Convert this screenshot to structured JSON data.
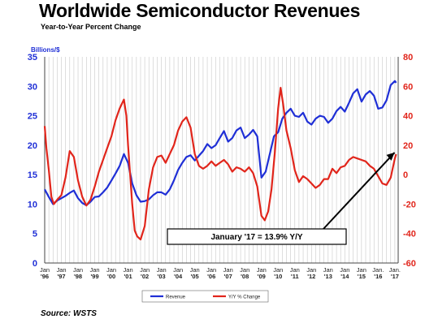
{
  "title": "Worldwide Semiconductor Revenues",
  "subtitle": "Year-to-Year Percent Change",
  "source": "Source: WSTS",
  "chart_data": {
    "type": "line",
    "y_left_label": "Billions/$",
    "y_left_ticks": [
      "0",
      "5",
      "10",
      "15",
      "20",
      "25",
      "30",
      "35"
    ],
    "y_left_lim": [
      0,
      35
    ],
    "y_right_ticks": [
      "80",
      "60",
      "40",
      "20",
      "0",
      "-20",
      "-40",
      "-60"
    ],
    "y_right_lim": [
      -60,
      80
    ],
    "x_ticks": [
      {
        "top": "Jan",
        "bottom": "'96"
      },
      {
        "top": "Jan",
        "bottom": "'97"
      },
      {
        "top": "Jan",
        "bottom": "'98"
      },
      {
        "top": "Jan",
        "bottom": "'99"
      },
      {
        "top": "Jan",
        "bottom": "'00"
      },
      {
        "top": "Jan",
        "bottom": "'01"
      },
      {
        "top": "Jan",
        "bottom": "'02"
      },
      {
        "top": "Jan",
        "bottom": "'03"
      },
      {
        "top": "Jan",
        "bottom": "'04"
      },
      {
        "top": "Jan",
        "bottom": "'05"
      },
      {
        "top": "Jan",
        "bottom": "'06"
      },
      {
        "top": "Jan",
        "bottom": "'07"
      },
      {
        "top": "Jan",
        "bottom": "'08"
      },
      {
        "top": "Jan",
        "bottom": "'09"
      },
      {
        "top": "Jan",
        "bottom": "'10"
      },
      {
        "top": "Jan",
        "bottom": "'11"
      },
      {
        "top": "Jan",
        "bottom": "'12"
      },
      {
        "top": "Jan",
        "bottom": "'13"
      },
      {
        "top": "Jan",
        "bottom": "'14"
      },
      {
        "top": "Jan",
        "bottom": "'15"
      },
      {
        "top": "Jan.",
        "bottom": "'16"
      },
      {
        "top": "Jan.",
        "bottom": "'17"
      }
    ],
    "x_lim": [
      1996.0,
      2017.2
    ],
    "grid": "vertical",
    "legend_position": "bottom-center",
    "annotation": {
      "text": "January '17 = 13.9% Y/Y",
      "x": 2017.08,
      "y_pct": 13.9
    },
    "series": [
      {
        "name": "Revenue",
        "axis": "left",
        "color": "#1f2fd6",
        "points": [
          [
            1996.0,
            12.5
          ],
          [
            1996.25,
            11.2
          ],
          [
            1996.5,
            10.0
          ],
          [
            1996.75,
            10.6
          ],
          [
            1997.0,
            11.0
          ],
          [
            1997.25,
            11.4
          ],
          [
            1997.5,
            11.9
          ],
          [
            1997.75,
            12.3
          ],
          [
            1998.0,
            11.0
          ],
          [
            1998.25,
            10.2
          ],
          [
            1998.5,
            9.8
          ],
          [
            1998.75,
            10.4
          ],
          [
            1999.0,
            11.2
          ],
          [
            1999.25,
            11.3
          ],
          [
            1999.5,
            12.0
          ],
          [
            1999.75,
            12.8
          ],
          [
            2000.0,
            14.0
          ],
          [
            2000.25,
            15.2
          ],
          [
            2000.5,
            16.5
          ],
          [
            2000.75,
            18.5
          ],
          [
            2001.0,
            17.0
          ],
          [
            2001.25,
            13.5
          ],
          [
            2001.5,
            11.5
          ],
          [
            2001.75,
            10.4
          ],
          [
            2002.0,
            10.5
          ],
          [
            2002.25,
            10.8
          ],
          [
            2002.5,
            11.5
          ],
          [
            2002.75,
            12.0
          ],
          [
            2003.0,
            12.0
          ],
          [
            2003.25,
            11.6
          ],
          [
            2003.5,
            12.5
          ],
          [
            2003.75,
            14.0
          ],
          [
            2004.0,
            15.8
          ],
          [
            2004.25,
            17.0
          ],
          [
            2004.5,
            18.0
          ],
          [
            2004.75,
            18.3
          ],
          [
            2005.0,
            17.4
          ],
          [
            2005.25,
            18.2
          ],
          [
            2005.5,
            19.0
          ],
          [
            2005.75,
            20.2
          ],
          [
            2006.0,
            19.5
          ],
          [
            2006.25,
            20.0
          ],
          [
            2006.5,
            21.2
          ],
          [
            2006.75,
            22.4
          ],
          [
            2007.0,
            20.6
          ],
          [
            2007.25,
            21.2
          ],
          [
            2007.5,
            22.5
          ],
          [
            2007.75,
            23.0
          ],
          [
            2008.0,
            21.2
          ],
          [
            2008.25,
            21.8
          ],
          [
            2008.5,
            22.6
          ],
          [
            2008.75,
            21.5
          ],
          [
            2009.0,
            14.5
          ],
          [
            2009.25,
            15.5
          ],
          [
            2009.5,
            18.5
          ],
          [
            2009.75,
            21.5
          ],
          [
            2010.0,
            22.2
          ],
          [
            2010.25,
            24.5
          ],
          [
            2010.5,
            25.5
          ],
          [
            2010.75,
            26.2
          ],
          [
            2011.0,
            25.0
          ],
          [
            2011.25,
            24.8
          ],
          [
            2011.5,
            25.5
          ],
          [
            2011.75,
            24.0
          ],
          [
            2012.0,
            23.5
          ],
          [
            2012.25,
            24.5
          ],
          [
            2012.5,
            25.0
          ],
          [
            2012.75,
            24.8
          ],
          [
            2013.0,
            23.8
          ],
          [
            2013.25,
            24.5
          ],
          [
            2013.5,
            25.8
          ],
          [
            2013.75,
            26.5
          ],
          [
            2014.0,
            25.7
          ],
          [
            2014.25,
            27.2
          ],
          [
            2014.5,
            28.8
          ],
          [
            2014.75,
            29.5
          ],
          [
            2015.0,
            27.4
          ],
          [
            2015.25,
            28.6
          ],
          [
            2015.5,
            29.2
          ],
          [
            2015.75,
            28.4
          ],
          [
            2016.0,
            26.2
          ],
          [
            2016.25,
            26.4
          ],
          [
            2016.5,
            27.6
          ],
          [
            2016.75,
            30.2
          ],
          [
            2017.0,
            30.9
          ],
          [
            2017.08,
            30.6
          ]
        ]
      },
      {
        "name": "Y/Y % Change",
        "axis": "right",
        "color": "#e1251b",
        "points": [
          [
            1996.0,
            33
          ],
          [
            1996.1,
            18
          ],
          [
            1996.25,
            3
          ],
          [
            1996.4,
            -15
          ],
          [
            1996.55,
            -20
          ],
          [
            1996.75,
            -17
          ],
          [
            1997.0,
            -14
          ],
          [
            1997.25,
            -2
          ],
          [
            1997.5,
            16
          ],
          [
            1997.75,
            12
          ],
          [
            1998.0,
            -4
          ],
          [
            1998.25,
            -15
          ],
          [
            1998.5,
            -21
          ],
          [
            1998.75,
            -17
          ],
          [
            1999.0,
            -8
          ],
          [
            1999.25,
            2
          ],
          [
            1999.5,
            10
          ],
          [
            1999.75,
            18
          ],
          [
            2000.0,
            26
          ],
          [
            2000.25,
            37
          ],
          [
            2000.5,
            45
          ],
          [
            2000.75,
            51
          ],
          [
            2000.9,
            40
          ],
          [
            2001.0,
            20
          ],
          [
            2001.25,
            -20
          ],
          [
            2001.4,
            -38
          ],
          [
            2001.55,
            -42
          ],
          [
            2001.75,
            -44
          ],
          [
            2002.0,
            -35
          ],
          [
            2002.25,
            -10
          ],
          [
            2002.5,
            5
          ],
          [
            2002.75,
            12
          ],
          [
            2003.0,
            13
          ],
          [
            2003.25,
            8
          ],
          [
            2003.5,
            14
          ],
          [
            2003.75,
            20
          ],
          [
            2004.0,
            30
          ],
          [
            2004.25,
            36
          ],
          [
            2004.5,
            39
          ],
          [
            2004.75,
            32
          ],
          [
            2005.0,
            14
          ],
          [
            2005.25,
            6
          ],
          [
            2005.5,
            4
          ],
          [
            2005.75,
            6
          ],
          [
            2006.0,
            9
          ],
          [
            2006.25,
            6
          ],
          [
            2006.5,
            8
          ],
          [
            2006.75,
            10
          ],
          [
            2007.0,
            7
          ],
          [
            2007.25,
            2
          ],
          [
            2007.5,
            5
          ],
          [
            2007.75,
            4
          ],
          [
            2008.0,
            2
          ],
          [
            2008.25,
            5
          ],
          [
            2008.5,
            1
          ],
          [
            2008.75,
            -8
          ],
          [
            2009.0,
            -28
          ],
          [
            2009.2,
            -31
          ],
          [
            2009.4,
            -25
          ],
          [
            2009.6,
            -10
          ],
          [
            2009.8,
            15
          ],
          [
            2010.0,
            45
          ],
          [
            2010.15,
            59
          ],
          [
            2010.3,
            48
          ],
          [
            2010.5,
            30
          ],
          [
            2010.75,
            18
          ],
          [
            2011.0,
            3
          ],
          [
            2011.25,
            -5
          ],
          [
            2011.5,
            -1
          ],
          [
            2011.75,
            -3
          ],
          [
            2012.0,
            -6
          ],
          [
            2012.25,
            -9
          ],
          [
            2012.5,
            -7
          ],
          [
            2012.75,
            -3
          ],
          [
            2013.0,
            -3
          ],
          [
            2013.25,
            4
          ],
          [
            2013.5,
            1
          ],
          [
            2013.75,
            5
          ],
          [
            2014.0,
            6
          ],
          [
            2014.25,
            10
          ],
          [
            2014.5,
            12
          ],
          [
            2014.75,
            11
          ],
          [
            2015.0,
            10
          ],
          [
            2015.25,
            9
          ],
          [
            2015.5,
            6
          ],
          [
            2015.75,
            4
          ],
          [
            2016.0,
            -1
          ],
          [
            2016.25,
            -6
          ],
          [
            2016.5,
            -7
          ],
          [
            2016.75,
            -2
          ],
          [
            2017.0,
            11
          ],
          [
            2017.08,
            13.9
          ]
        ]
      }
    ]
  }
}
